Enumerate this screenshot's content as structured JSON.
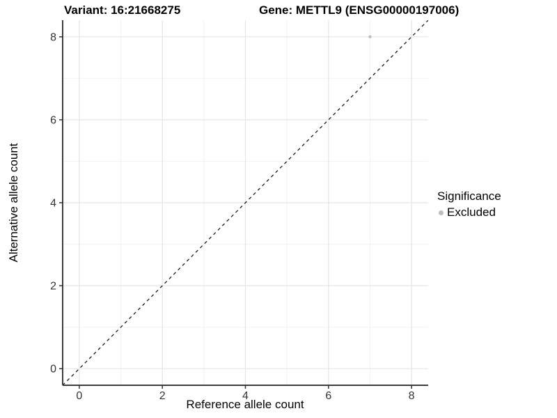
{
  "chart_data": {
    "type": "scatter",
    "title_left": "Variant: 16:21668275",
    "title_right": "Gene: METTL9 (ENSG00000197006)",
    "xlabel": "Reference allele count",
    "ylabel": "Alternative allele count",
    "xlim": [
      -0.4,
      8.4
    ],
    "ylim": [
      -0.4,
      8.4
    ],
    "x_major_ticks": [
      0,
      2,
      4,
      6,
      8
    ],
    "y_major_ticks": [
      0,
      2,
      4,
      6,
      8
    ],
    "x_minor_ticks": [
      1,
      3,
      5,
      7
    ],
    "y_minor_ticks": [
      1,
      3,
      5,
      7
    ],
    "grid": "major+minor",
    "series": [
      {
        "name": "Excluded",
        "color": "#bdbdbd",
        "point_radius": 2.2,
        "points": [
          {
            "x": 7,
            "y": 8
          }
        ]
      }
    ],
    "reference_line": {
      "slope": 1,
      "intercept": 0,
      "style": "dashed",
      "color": "#1a1a1a"
    },
    "legend": {
      "title": "Significance",
      "position": "right",
      "items": [
        {
          "label": "Excluded",
          "color": "#bdbdbd"
        }
      ]
    }
  },
  "colors": {
    "background": "#ffffff",
    "grid_major": "#e5e5e5",
    "grid_minor": "#f2f2f2",
    "axis_line": "#3d3d3d",
    "tick_mark": "#333333",
    "tick_text": "#333333"
  }
}
